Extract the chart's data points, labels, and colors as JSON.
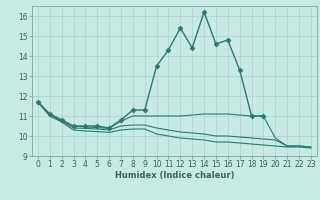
{
  "xlabel": "Humidex (Indice chaleur)",
  "xlim": [
    -0.5,
    23.5
  ],
  "ylim": [
    9,
    16.5
  ],
  "yticks": [
    9,
    10,
    11,
    12,
    13,
    14,
    15,
    16
  ],
  "xticks": [
    0,
    1,
    2,
    3,
    4,
    5,
    6,
    7,
    8,
    9,
    10,
    11,
    12,
    13,
    14,
    15,
    16,
    17,
    18,
    19,
    20,
    21,
    22,
    23
  ],
  "background_color": "#c8eae4",
  "line_color": "#2a7a70",
  "grid_color": "#a8d4cc",
  "lines": [
    {
      "x": [
        0,
        1,
        2,
        3,
        4,
        5,
        6,
        7,
        8,
        9,
        10,
        11,
        12,
        13,
        14,
        15,
        16,
        17,
        18,
        19
      ],
      "y": [
        11.7,
        11.1,
        10.8,
        10.5,
        10.5,
        10.5,
        10.4,
        10.8,
        11.3,
        11.3,
        13.5,
        14.3,
        15.4,
        14.4,
        16.2,
        14.6,
        14.8,
        13.3,
        11.0,
        11.0
      ],
      "marker": "D",
      "markersize": 2.5,
      "linewidth": 1.0
    },
    {
      "x": [
        0,
        1,
        2,
        3,
        4,
        5,
        6,
        7,
        8,
        9,
        10,
        11,
        12,
        13,
        14,
        15,
        16,
        17,
        18,
        19,
        20,
        21,
        22,
        23
      ],
      "y": [
        11.7,
        11.1,
        10.8,
        10.5,
        10.45,
        10.42,
        10.38,
        10.75,
        11.0,
        11.0,
        11.0,
        11.0,
        11.0,
        11.05,
        11.1,
        11.1,
        11.1,
        11.05,
        11.0,
        11.0,
        9.9,
        9.5,
        9.5,
        9.45
      ],
      "marker": null,
      "markersize": 0,
      "linewidth": 0.8
    },
    {
      "x": [
        0,
        1,
        2,
        3,
        4,
        5,
        6,
        7,
        8,
        9,
        10,
        11,
        12,
        13,
        14,
        15,
        16,
        17,
        18,
        19,
        20,
        21,
        22,
        23
      ],
      "y": [
        11.7,
        11.0,
        10.75,
        10.4,
        10.38,
        10.35,
        10.3,
        10.5,
        10.55,
        10.55,
        10.4,
        10.3,
        10.2,
        10.15,
        10.1,
        10.0,
        10.0,
        9.95,
        9.9,
        9.85,
        9.8,
        9.5,
        9.5,
        9.45
      ],
      "marker": null,
      "markersize": 0,
      "linewidth": 0.8
    },
    {
      "x": [
        0,
        1,
        2,
        3,
        4,
        5,
        6,
        7,
        8,
        9,
        10,
        11,
        12,
        13,
        14,
        15,
        16,
        17,
        18,
        19,
        20,
        21,
        22,
        23
      ],
      "y": [
        11.7,
        11.0,
        10.7,
        10.3,
        10.25,
        10.22,
        10.18,
        10.3,
        10.35,
        10.35,
        10.1,
        10.0,
        9.9,
        9.85,
        9.8,
        9.7,
        9.7,
        9.65,
        9.6,
        9.55,
        9.5,
        9.45,
        9.45,
        9.4
      ],
      "marker": null,
      "markersize": 0,
      "linewidth": 0.8
    }
  ],
  "tick_fontsize": 5.5,
  "xlabel_fontsize": 6.0,
  "tick_color": "#336655",
  "spine_color": "#779988"
}
